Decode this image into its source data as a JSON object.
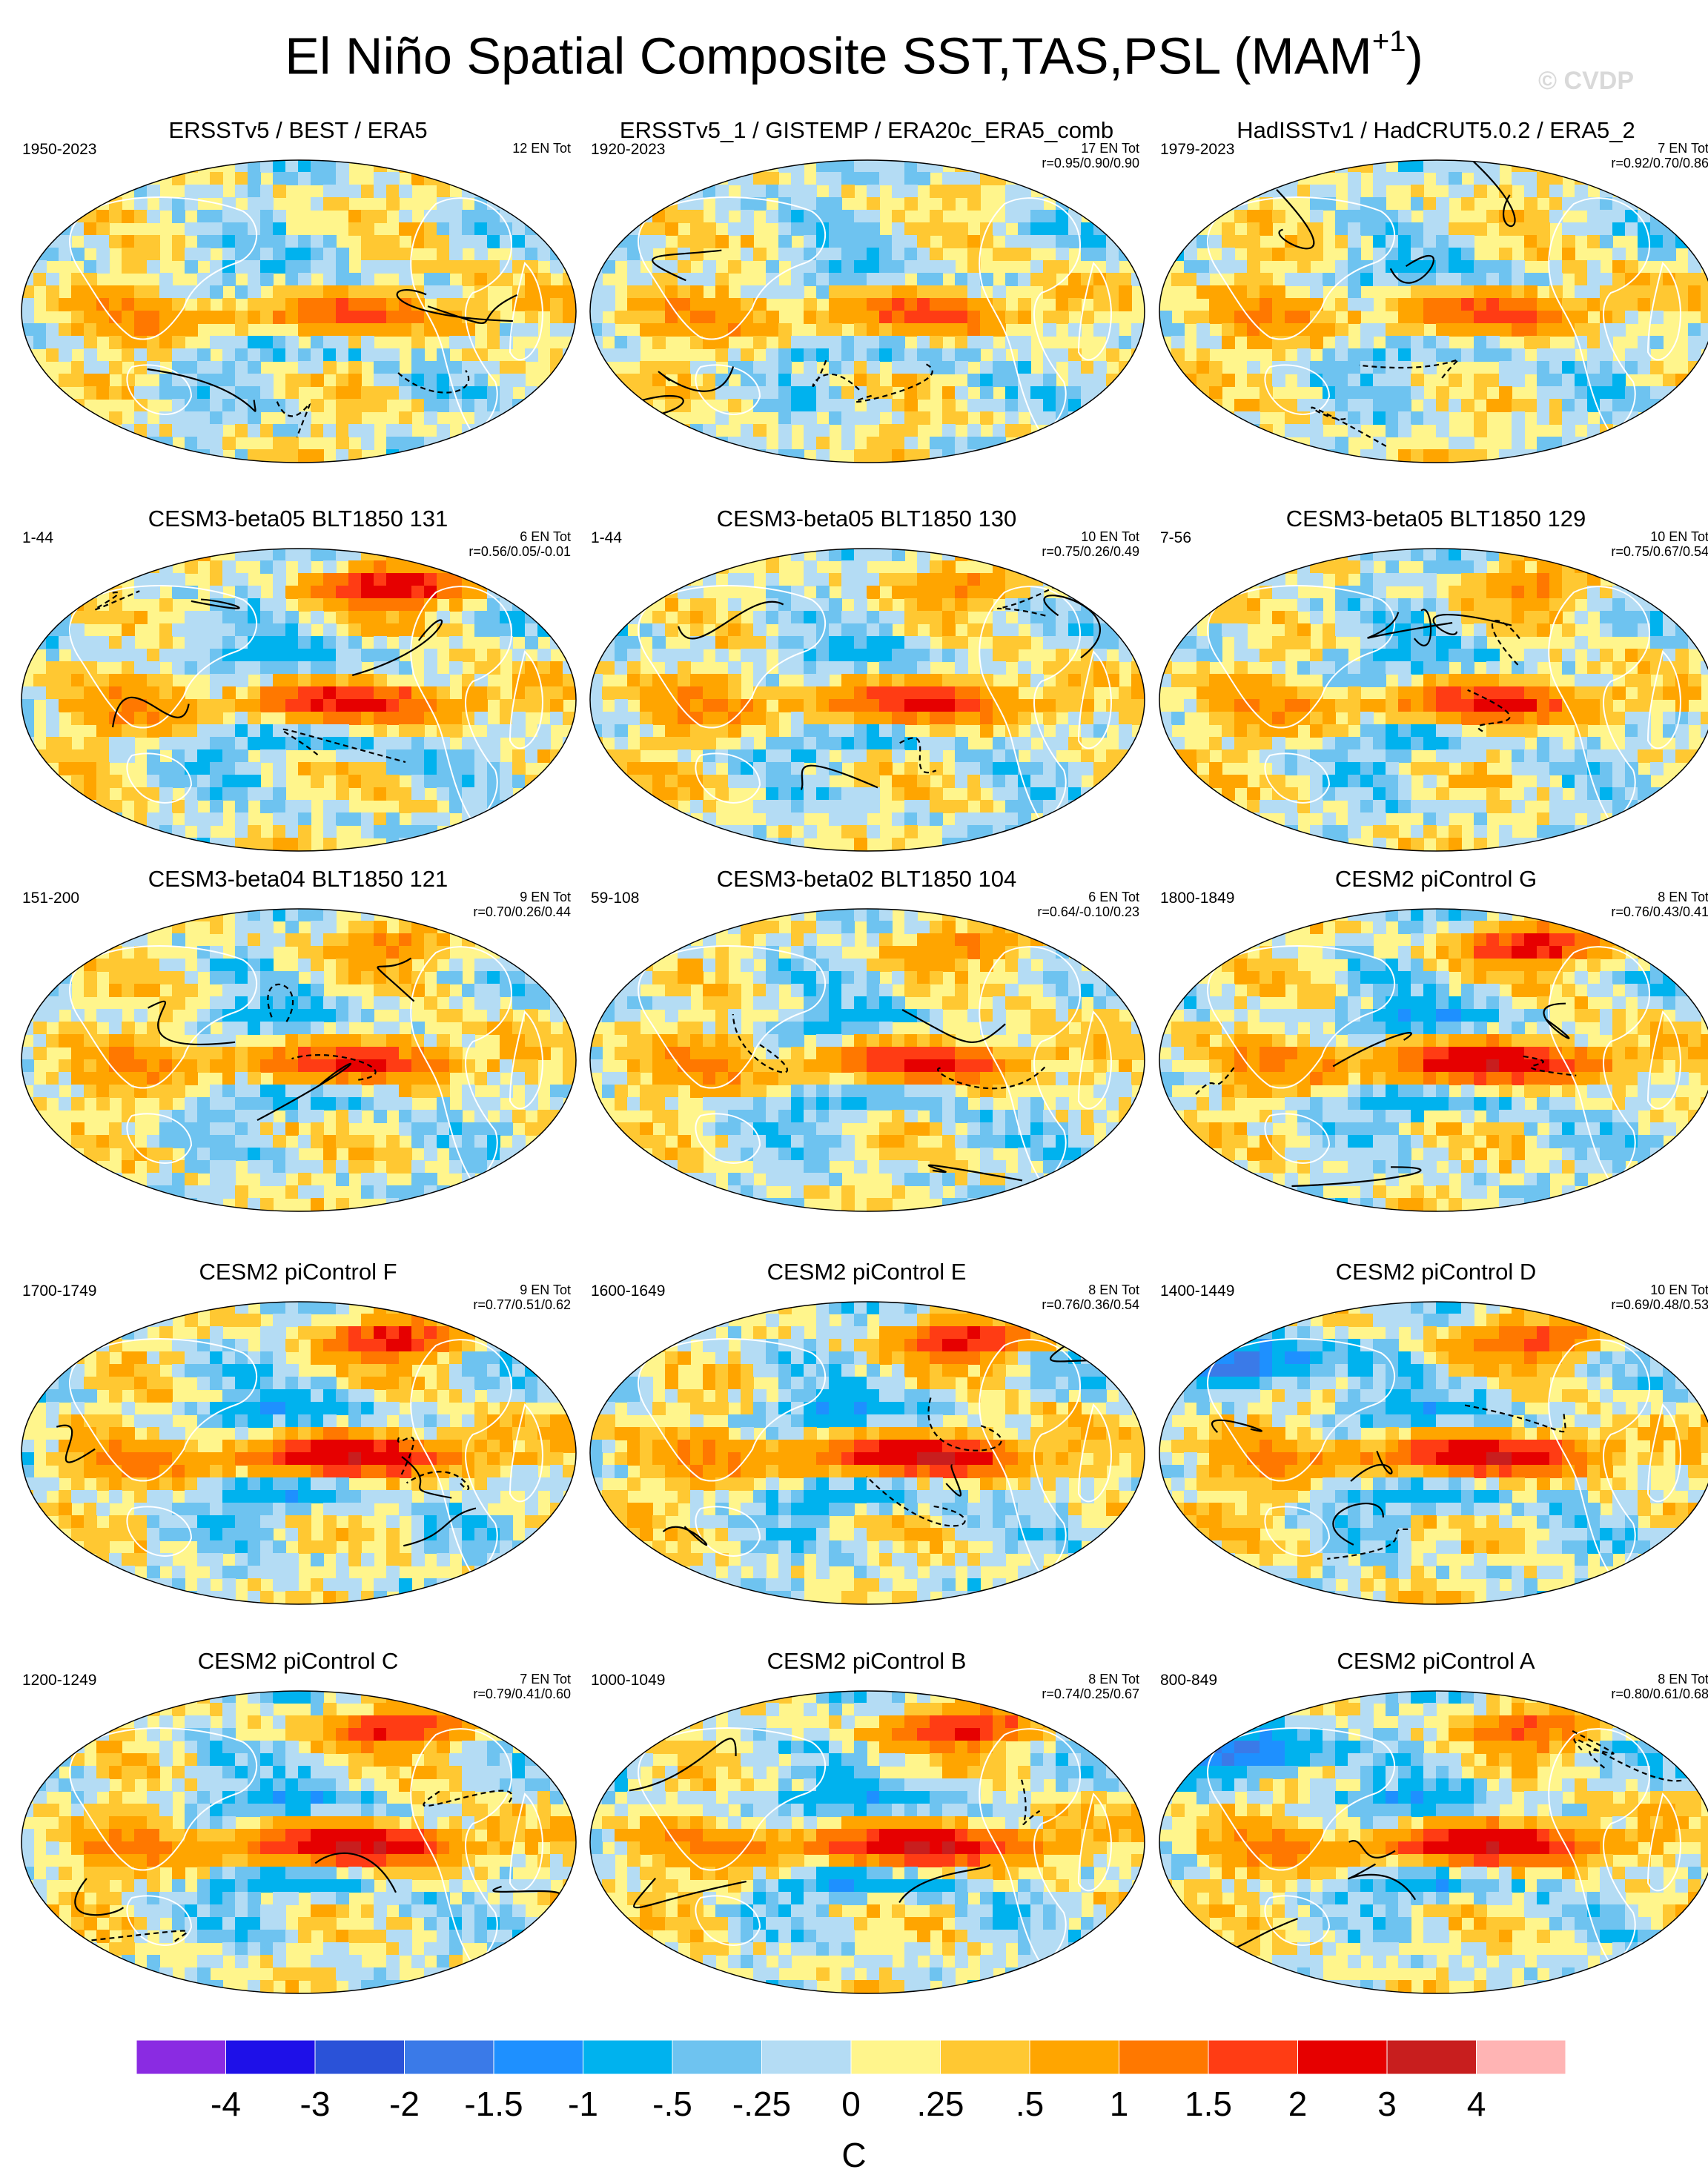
{
  "title": "El Niño Spatial Composite SST,TAS,PSL (MAM",
  "title_sup": "+1",
  "title_close": ")",
  "copyright": "© CVDP",
  "chart_data": {
    "type": "heatmap",
    "colorbar": {
      "labels": [
        "-4",
        "-3",
        "-2",
        "-1.5",
        "-1",
        "-.5",
        "-.25",
        "0",
        ".25",
        ".5",
        "1",
        "1.5",
        "2",
        "3",
        "4"
      ],
      "colors": [
        "#8a2be2",
        "#1e10e8",
        "#2a52d8",
        "#3a7ae8",
        "#1e90ff",
        "#00b2ee",
        "#6ec3f0",
        "#b4dcf4",
        "#fff58c",
        "#ffc832",
        "#ffa500",
        "#ff7800",
        "#ff3c14",
        "#e60000",
        "#c81e1e",
        "#ffb4b4"
      ],
      "unit": "C"
    },
    "panels": [
      {
        "title": "ERSSTv5 / BEST / ERA5",
        "years": "1950-2023",
        "count": "12 EN Tot",
        "corr": "",
        "pattern": "obs_recent"
      },
      {
        "title": "ERSSTv5_1 / GISTEMP / ERA20c_ERA5_comb",
        "years": "1920-2023",
        "count": "17 EN Tot",
        "corr": "r=0.95/0.90/0.90",
        "pattern": "obs_long"
      },
      {
        "title": "HadISSTv1 / HadCRUT5.0.2 / ERA5_2",
        "years": "1979-2023",
        "count": "7 EN Tot",
        "corr": "r=0.92/0.70/0.86",
        "pattern": "obs_sat"
      },
      {
        "title": "CESM3-beta05 BLT1850 131",
        "years": "1-44",
        "count": "6 EN Tot",
        "corr": "r=0.56/0.05/-0.01",
        "pattern": "warm_arctic"
      },
      {
        "title": "CESM3-beta05 BLT1850 130",
        "years": "1-44",
        "count": "10 EN Tot",
        "corr": "r=0.75/0.26/0.49",
        "pattern": "mild"
      },
      {
        "title": "CESM3-beta05 BLT1850 129",
        "years": "7-56",
        "count": "10 EN Tot",
        "corr": "r=0.75/0.67/0.54",
        "pattern": "mild"
      },
      {
        "title": "CESM3-beta04 BLT1850 121",
        "years": "151-200",
        "count": "9 EN Tot",
        "corr": "r=0.70/0.26/0.44",
        "pattern": "mild"
      },
      {
        "title": "CESM3-beta02 BLT1850 104",
        "years": "59-108",
        "count": "6 EN Tot",
        "corr": "r=0.64/-0.10/0.23",
        "pattern": "mild"
      },
      {
        "title": "CESM2 piControl G",
        "years": "1800-1849",
        "count": "8 EN Tot",
        "corr": "r=0.76/0.43/0.41",
        "pattern": "strong"
      },
      {
        "title": "CESM2 piControl F",
        "years": "1700-1749",
        "count": "9 EN Tot",
        "corr": "r=0.77/0.51/0.62",
        "pattern": "strong"
      },
      {
        "title": "CESM2 piControl E",
        "years": "1600-1649",
        "count": "8 EN Tot",
        "corr": "r=0.76/0.36/0.54",
        "pattern": "strong"
      },
      {
        "title": "CESM2 piControl D",
        "years": "1400-1449",
        "count": "10 EN Tot",
        "corr": "r=0.69/0.48/0.53",
        "pattern": "cold_asia"
      },
      {
        "title": "CESM2 piControl C",
        "years": "1200-1249",
        "count": "7 EN Tot",
        "corr": "r=0.79/0.41/0.60",
        "pattern": "strong"
      },
      {
        "title": "CESM2 piControl B",
        "years": "1000-1049",
        "count": "8 EN Tot",
        "corr": "r=0.74/0.25/0.67",
        "pattern": "strong"
      },
      {
        "title": "CESM2 piControl A",
        "years": "800-849",
        "count": "8 EN Tot",
        "corr": "r=0.80/0.61/0.68",
        "pattern": "cold_asia"
      }
    ]
  }
}
